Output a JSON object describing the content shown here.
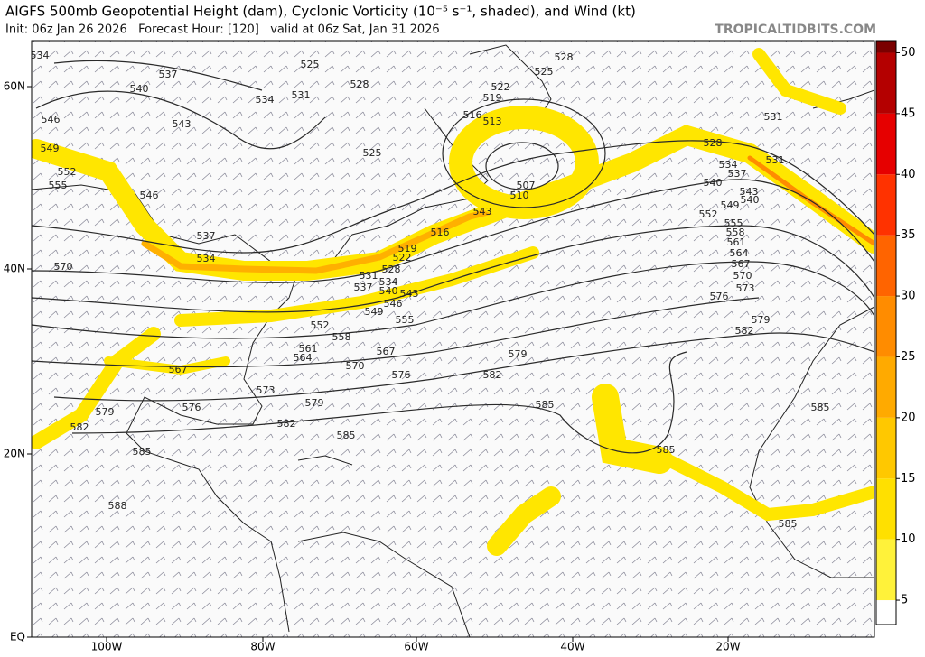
{
  "header": {
    "title": "AIGFS 500mb Geopotential Height (dam), Cyclonic Vorticity (10⁻⁵ s⁻¹, shaded), and Wind (kt)",
    "subtitle": "Init: 06z Jan 26 2026   Forecast Hour: [120]   valid at 06z Sat, Jan 31 2026",
    "site": "TROPICALTIDBITS.COM"
  },
  "map": {
    "lat_labels": [
      "60N",
      "40N",
      "20N",
      "EQ"
    ],
    "lon_labels": [
      "100W",
      "80W",
      "60W",
      "40W",
      "20W"
    ],
    "contour_labels": [
      "534",
      "525",
      "537",
      "540",
      "534",
      "531",
      "528",
      "525",
      "528",
      "522",
      "519",
      "516",
      "513",
      "546",
      "543",
      "549",
      "525",
      "531",
      "528",
      "531",
      "552",
      "555",
      "546",
      "534",
      "537",
      "540",
      "543",
      "540",
      "507",
      "510",
      "543",
      "549",
      "552",
      "516",
      "555",
      "558",
      "561",
      "519",
      "537",
      "564",
      "522",
      "534",
      "570",
      "528",
      "567",
      "531",
      "534",
      "537",
      "570",
      "540",
      "543",
      "573",
      "576",
      "546",
      "549",
      "579",
      "552",
      "555",
      "558",
      "582",
      "561",
      "567",
      "564",
      "579",
      "570",
      "576",
      "582",
      "567",
      "573",
      "579",
      "576",
      "585",
      "585",
      "579",
      "582",
      "582",
      "585",
      "585",
      "585",
      "588",
      "585"
    ]
  },
  "colorbar": {
    "range": [
      3,
      51
    ],
    "ticks": [
      5,
      10,
      15,
      20,
      25,
      30,
      35,
      40,
      45,
      50
    ]
  }
}
